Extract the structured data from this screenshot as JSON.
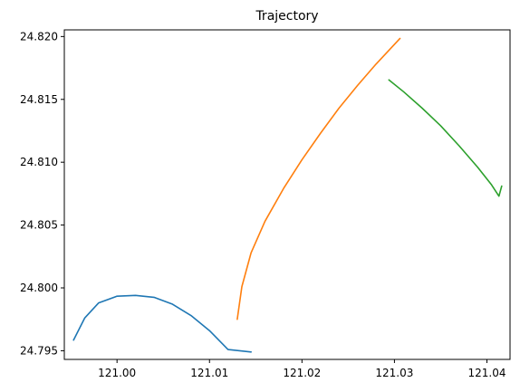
{
  "chart_data": {
    "type": "line",
    "title": "Trajectory",
    "xlabel": "",
    "ylabel": "",
    "xlim": [
      120.9943,
      121.0425
    ],
    "ylim": [
      24.79431,
      24.82053
    ],
    "grid": false,
    "x_ticks": [
      121.0,
      121.01,
      121.02,
      121.03,
      121.04
    ],
    "x_tick_labels": [
      "121.00",
      "121.01",
      "121.02",
      "121.03",
      "121.04"
    ],
    "y_ticks": [
      24.795,
      24.8,
      24.805,
      24.81,
      24.815,
      24.82
    ],
    "y_tick_labels": [
      "24.795",
      "24.800",
      "24.805",
      "24.810",
      "24.815",
      "24.820"
    ],
    "series": [
      {
        "color": "#1f77b4",
        "x": [
          120.9953,
          120.9965,
          120.998,
          121.0,
          121.002,
          121.004,
          121.006,
          121.008,
          121.01,
          121.012,
          121.0145
        ],
        "y": [
          24.79585,
          24.7976,
          24.7988,
          24.79934,
          24.7994,
          24.79925,
          24.7987,
          24.7978,
          24.7966,
          24.7951,
          24.7949
        ]
      },
      {
        "color": "#ff7f0e",
        "x": [
          121.013,
          121.0135,
          121.0145,
          121.016,
          121.018,
          121.02,
          121.022,
          121.024,
          121.026,
          121.028,
          121.0306
        ],
        "y": [
          24.7975,
          24.8001,
          24.8028,
          24.8053,
          24.8079,
          24.8102,
          24.8123,
          24.8143,
          24.8161,
          24.8178,
          24.81985
        ]
      },
      {
        "color": "#2ca02c",
        "x": [
          121.0294,
          121.031,
          121.033,
          121.035,
          121.037,
          121.039,
          121.0405,
          121.0413,
          121.0416
        ],
        "y": [
          24.81655,
          24.8156,
          24.8143,
          24.8129,
          24.8113,
          24.8096,
          24.8082,
          24.8073,
          24.8081
        ]
      }
    ]
  }
}
